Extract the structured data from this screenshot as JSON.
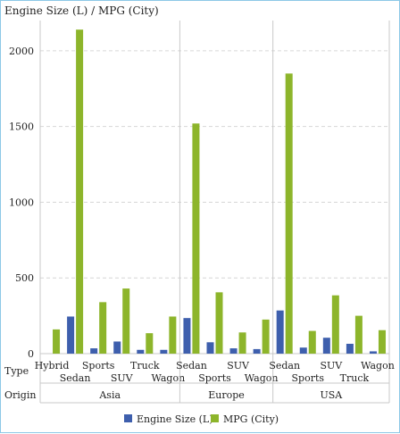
{
  "chart_data": {
    "type": "bar",
    "ylabel": "Engine Size (L) / MPG (City)",
    "ylim": [
      0,
      2200
    ],
    "yticks": [
      0,
      500,
      1000,
      1500,
      2000
    ],
    "grid": true,
    "legend_position": "bottom",
    "row_labels": {
      "type": "Type",
      "origin": "Origin"
    },
    "groups": [
      {
        "origin": "Asia",
        "types": [
          "Hybrid",
          "Sedan",
          "Sports",
          "SUV",
          "Truck",
          "Wagon"
        ]
      },
      {
        "origin": "Europe",
        "types": [
          "Sedan",
          "Sports",
          "SUV",
          "Wagon"
        ]
      },
      {
        "origin": "USA",
        "types": [
          "Sedan",
          "Sports",
          "SUV",
          "Truck",
          "Wagon"
        ]
      }
    ],
    "series": [
      {
        "name": "Engine Size (L)",
        "color": "#3e5fad",
        "values": [
          [
            0,
            245,
            35,
            80,
            25,
            25
          ],
          [
            235,
            75,
            35,
            30
          ],
          [
            285,
            40,
            105,
            65,
            15
          ]
        ]
      },
      {
        "name": "MPG (City)",
        "color": "#8db52b",
        "values": [
          [
            160,
            2140,
            340,
            430,
            135,
            245
          ],
          [
            1520,
            405,
            140,
            225
          ],
          [
            1850,
            150,
            385,
            250,
            155
          ]
        ]
      }
    ]
  }
}
